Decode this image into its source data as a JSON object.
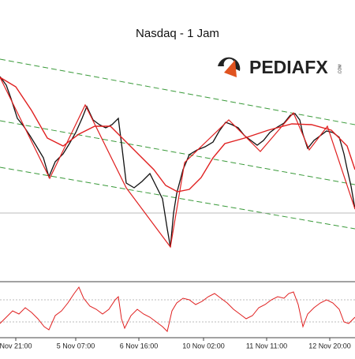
{
  "header": {
    "title": "Nasdaq - 1 Jam"
  },
  "logo": {
    "name": "PEDIAFX",
    "suffix": ".COM"
  },
  "x_axis": {
    "labels": [
      "Nov 21:00",
      "5 Nov 07:00",
      "6 Nov 16:00",
      "10 Nov 02:00",
      "11 Nov 11:00",
      "12 Nov 20:00"
    ]
  }
}
